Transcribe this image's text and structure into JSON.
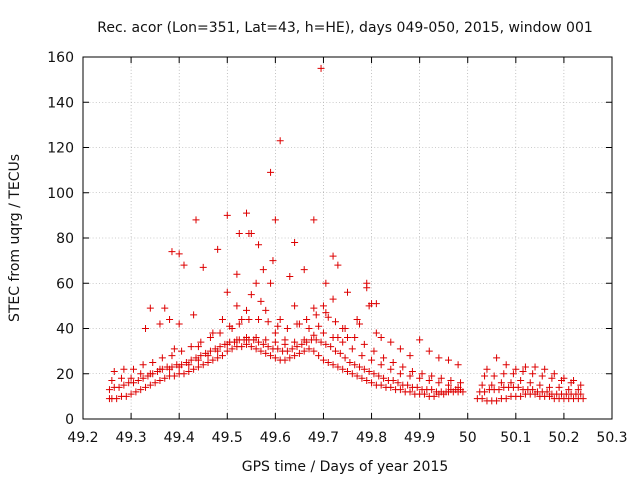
{
  "chart_data": {
    "type": "scatter",
    "title": "Rec. acor (Lon=351, Lat=43, h=HE), days 049-050, 2015, window 001",
    "xlabel": "GPS time / Days of year 2015",
    "ylabel": "STEC from uqrg / TECUs",
    "xlim": [
      49.2,
      50.3
    ],
    "ylim": [
      0,
      160
    ],
    "xticks": [
      "49.2",
      "49.3",
      "49.4",
      "49.5",
      "49.6",
      "49.7",
      "49.8",
      "49.9",
      "50",
      "50.1",
      "50.2",
      "50.3"
    ],
    "xtick_values": [
      49.2,
      49.3,
      49.4,
      49.5,
      49.6,
      49.7,
      49.8,
      49.9,
      50.0,
      50.1,
      50.2,
      50.3
    ],
    "yticks": [
      "0",
      "20",
      "40",
      "60",
      "80",
      "100",
      "120",
      "140",
      "160"
    ],
    "ytick_values": [
      0,
      20,
      40,
      60,
      80,
      100,
      120,
      140,
      160
    ],
    "grid": true,
    "marker": "+",
    "color": "#dd0000",
    "series": [
      {
        "name": "STEC",
        "x": [
          49.255,
          49.26,
          49.27,
          49.28,
          49.29,
          49.3,
          49.31,
          49.32,
          49.33,
          49.34,
          49.35,
          49.36,
          49.37,
          49.38,
          49.39,
          49.4,
          49.41,
          49.42,
          49.43,
          49.44,
          49.45,
          49.46,
          49.47,
          49.48,
          49.49,
          49.5,
          49.51,
          49.52,
          49.53,
          49.54,
          49.55,
          49.56,
          49.57,
          49.58,
          49.59,
          49.6,
          49.61,
          49.62,
          49.63,
          49.64,
          49.65,
          49.66,
          49.67,
          49.68,
          49.69,
          49.7,
          49.71,
          49.72,
          49.73,
          49.74,
          49.75,
          49.76,
          49.77,
          49.78,
          49.79,
          49.8,
          49.81,
          49.82,
          49.83,
          49.84,
          49.85,
          49.86,
          49.87,
          49.88,
          49.89,
          49.9,
          49.91,
          49.92,
          49.93,
          49.94,
          49.95,
          49.96,
          49.97,
          49.98,
          49.99,
          50.02,
          50.03,
          50.04,
          50.05,
          50.06,
          50.07,
          50.08,
          50.09,
          50.1,
          50.11,
          50.12,
          50.13,
          50.14,
          50.15,
          50.16,
          50.17,
          50.18,
          50.19,
          50.2,
          50.21,
          50.22,
          50.23,
          50.24,
          49.255,
          49.265,
          49.275,
          49.285,
          49.295,
          49.305,
          49.315,
          49.325,
          49.335,
          49.345,
          49.355,
          49.365,
          49.375,
          49.385,
          49.395,
          49.405,
          49.415,
          49.425,
          49.435,
          49.445,
          49.455,
          49.465,
          49.475,
          49.485,
          49.495,
          49.505,
          49.515,
          49.525,
          49.535,
          49.545,
          49.555,
          49.565,
          49.575,
          49.585,
          49.595,
          49.605,
          49.615,
          49.625,
          49.635,
          49.645,
          49.655,
          49.665,
          49.675,
          49.685,
          49.695,
          49.705,
          49.715,
          49.725,
          49.735,
          49.745,
          49.755,
          49.765,
          49.775,
          49.785,
          49.795,
          49.805,
          49.815,
          49.825,
          49.835,
          49.845,
          49.855,
          49.865,
          49.875,
          49.885,
          49.895,
          49.905,
          49.915,
          49.925,
          49.935,
          49.945,
          49.955,
          49.965,
          49.975,
          49.985,
          50.025,
          50.035,
          50.045,
          50.055,
          50.065,
          50.075,
          50.085,
          50.095,
          50.105,
          50.115,
          50.125,
          50.135,
          50.145,
          50.155,
          50.165,
          50.175,
          50.185,
          50.195,
          50.205,
          50.215,
          50.225,
          50.235,
          49.26,
          49.28,
          49.3,
          49.32,
          49.34,
          49.36,
          49.38,
          49.4,
          49.42,
          49.44,
          49.46,
          49.48,
          49.5,
          49.52,
          49.54,
          49.56,
          49.58,
          49.6,
          49.62,
          49.64,
          49.66,
          49.68,
          49.7,
          49.72,
          49.74,
          49.76,
          49.78,
          49.8,
          49.82,
          49.84,
          49.86,
          49.88,
          49.9,
          49.92,
          49.94,
          49.96,
          49.98,
          50.03,
          50.05,
          50.07,
          50.09,
          50.11,
          50.13,
          50.15,
          50.17,
          50.19,
          50.21,
          50.23,
          49.265,
          49.285,
          49.305,
          49.325,
          49.345,
          49.365,
          49.385,
          49.405,
          49.425,
          49.445,
          49.465,
          49.485,
          49.505,
          49.525,
          49.545,
          49.565,
          49.585,
          49.605,
          49.625,
          49.645,
          49.665,
          49.685,
          49.705,
          49.725,
          49.745,
          49.765,
          49.785,
          49.805,
          49.825,
          49.845,
          49.865,
          49.885,
          49.905,
          49.925,
          49.945,
          49.965,
          49.985,
          50.035,
          50.055,
          50.075,
          50.095,
          50.115,
          50.135,
          50.155,
          50.175,
          50.195,
          50.215,
          50.235,
          49.33,
          49.36,
          49.38,
          49.39,
          49.4,
          49.43,
          49.44,
          49.47,
          49.49,
          49.5,
          49.51,
          49.52,
          49.53,
          49.54,
          49.55,
          49.56,
          49.57,
          49.58,
          49.59,
          49.6,
          49.61,
          49.62,
          49.64,
          49.65,
          49.67,
          49.68,
          49.69,
          49.7,
          49.71,
          49.72,
          49.73,
          49.74,
          49.75,
          49.77,
          49.79,
          49.8,
          49.81,
          49.82,
          49.84,
          49.86,
          49.88,
          49.9,
          49.92,
          49.94,
          49.96,
          49.98,
          50.04,
          50.06,
          50.08,
          50.1,
          50.12,
          50.14,
          50.16,
          50.18,
          50.2,
          50.22,
          49.385,
          49.4,
          49.435,
          49.5,
          49.525,
          49.54,
          49.545,
          49.55,
          49.565,
          49.59,
          49.595,
          49.6,
          49.61,
          49.64,
          49.68,
          49.695,
          49.72,
          49.73,
          49.79,
          49.81,
          49.34,
          49.37,
          49.41,
          49.45,
          49.48,
          49.52,
          49.575,
          49.63,
          49.66,
          49.705,
          49.75,
          49.775,
          49.795
        ],
        "y": [
          9,
          9,
          9,
          10,
          10,
          11,
          12,
          13,
          14,
          15,
          16,
          17,
          18,
          19,
          19,
          20,
          20,
          21,
          22,
          23,
          24,
          25,
          26,
          27,
          28,
          30,
          31,
          32,
          32,
          33,
          32,
          31,
          30,
          29,
          28,
          27,
          26,
          26,
          27,
          28,
          29,
          30,
          31,
          30,
          28,
          26,
          25,
          24,
          23,
          22,
          21,
          20,
          19,
          18,
          17,
          16,
          15,
          15,
          14,
          14,
          13,
          13,
          12,
          12,
          11,
          11,
          11,
          10,
          10,
          11,
          11,
          12,
          12,
          12,
          12,
          9,
          9,
          8,
          8,
          8,
          9,
          9,
          10,
          10,
          10,
          11,
          11,
          11,
          10,
          10,
          10,
          9,
          9,
          9,
          9,
          9,
          9,
          9,
          13,
          14,
          14,
          15,
          16,
          16,
          17,
          18,
          19,
          20,
          21,
          22,
          23,
          23,
          24,
          24,
          25,
          26,
          27,
          28,
          29,
          30,
          31,
          32,
          33,
          34,
          34,
          35,
          35,
          35,
          35,
          34,
          33,
          32,
          31,
          31,
          30,
          30,
          31,
          32,
          33,
          34,
          35,
          35,
          34,
          33,
          32,
          30,
          29,
          27,
          25,
          24,
          23,
          22,
          21,
          20,
          19,
          18,
          17,
          17,
          16,
          15,
          15,
          14,
          14,
          13,
          13,
          13,
          12,
          12,
          12,
          13,
          13,
          13,
          12,
          12,
          13,
          13,
          13,
          14,
          14,
          14,
          14,
          13,
          13,
          13,
          12,
          12,
          12,
          11,
          11,
          11,
          11,
          11,
          11,
          11,
          17,
          18,
          18,
          20,
          20,
          22,
          22,
          23,
          24,
          26,
          28,
          30,
          33,
          35,
          36,
          36,
          35,
          34,
          33,
          34,
          35,
          37,
          38,
          36,
          34,
          31,
          28,
          26,
          24,
          22,
          20,
          19,
          18,
          17,
          16,
          15,
          14,
          15,
          15,
          16,
          16,
          17,
          16,
          15,
          14,
          14,
          13,
          13,
          21,
          22,
          22,
          24,
          25,
          27,
          28,
          30,
          32,
          34,
          36,
          38,
          41,
          42,
          44,
          44,
          43,
          41,
          40,
          42,
          44,
          46,
          47,
          43,
          40,
          36,
          33,
          30,
          27,
          25,
          23,
          21,
          20,
          19,
          18,
          17,
          16,
          19,
          19,
          20,
          20,
          21,
          20,
          19,
          18,
          17,
          16,
          15,
          40,
          42,
          44,
          31,
          42,
          46,
          32,
          38,
          44,
          56,
          40,
          50,
          44,
          48,
          55,
          60,
          52,
          48,
          60,
          38,
          44,
          35,
          50,
          42,
          40,
          49,
          41,
          50,
          45,
          53,
          36,
          40,
          36,
          44,
          58,
          51,
          38,
          36,
          34,
          31,
          28,
          35,
          30,
          27,
          26,
          24,
          22,
          27,
          24,
          22,
          23,
          23,
          22,
          20,
          18,
          17,
          74,
          73,
          88,
          90,
          82,
          91,
          82,
          82,
          77,
          109,
          70,
          88,
          123,
          78,
          88,
          155,
          72,
          68,
          60,
          51,
          49,
          49,
          68,
          67,
          75,
          64,
          66,
          63,
          66,
          60,
          56,
          42,
          50
        ]
      }
    ]
  }
}
